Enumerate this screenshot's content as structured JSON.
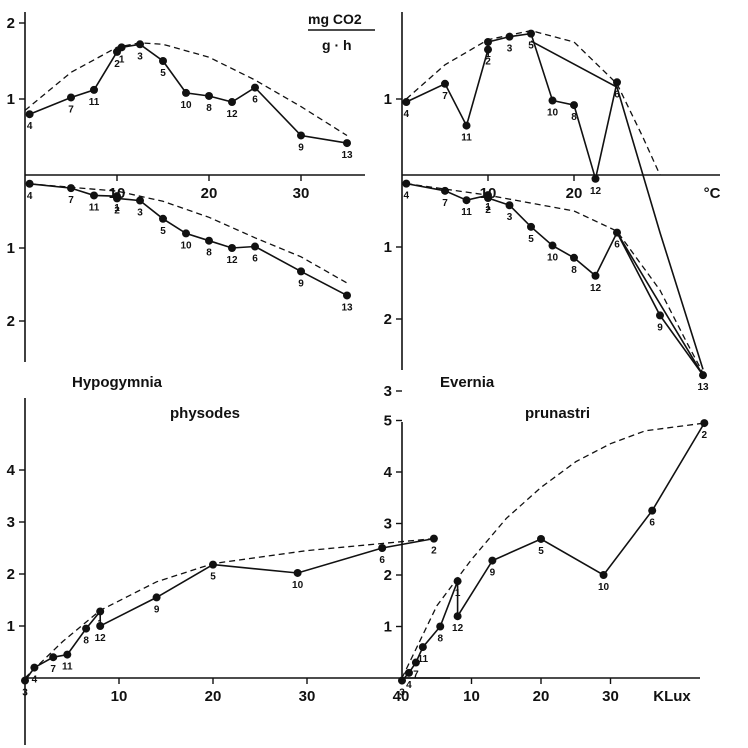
{
  "header": {
    "units_numerator": "mg CO2",
    "units_denominator": "g · h"
  },
  "species": [
    {
      "genus": "Hypogymnia",
      "epithet": "physodes"
    },
    {
      "genus": "Evernia",
      "epithet": "prunastri"
    }
  ],
  "chart_data": [
    {
      "id": "hyp_temp_uptake",
      "type": "line",
      "xticks": [
        10,
        20,
        30
      ],
      "yticks": [
        1,
        2
      ],
      "xlim": [
        0,
        36
      ],
      "ylim": [
        0,
        2
      ],
      "points": [
        {
          "label": "4",
          "x": 0.5,
          "y": 0.8
        },
        {
          "label": "7",
          "x": 5,
          "y": 1.02
        },
        {
          "label": "11",
          "x": 7.5,
          "y": 1.12
        },
        {
          "label": "2",
          "x": 10,
          "y": 1.62
        },
        {
          "label": "1",
          "x": 10.5,
          "y": 1.68
        },
        {
          "label": "3",
          "x": 12.5,
          "y": 1.72
        },
        {
          "label": "5",
          "x": 15,
          "y": 1.5
        },
        {
          "label": "10",
          "x": 17.5,
          "y": 1.08
        },
        {
          "label": "8",
          "x": 20,
          "y": 1.04
        },
        {
          "label": "12",
          "x": 22.5,
          "y": 0.96
        },
        {
          "label": "6",
          "x": 25,
          "y": 1.15
        },
        {
          "label": "9",
          "x": 30,
          "y": 0.52
        },
        {
          "label": "13",
          "x": 35,
          "y": 0.42
        }
      ],
      "envelope": [
        [
          0,
          0.85
        ],
        [
          5,
          1.35
        ],
        [
          10,
          1.68
        ],
        [
          12.5,
          1.74
        ],
        [
          15,
          1.72
        ],
        [
          20,
          1.55
        ],
        [
          25,
          1.25
        ],
        [
          30,
          0.9
        ],
        [
          35,
          0.52
        ]
      ]
    },
    {
      "id": "hyp_temp_resp",
      "type": "line",
      "xlim": [
        0,
        36
      ],
      "yticks": [
        1,
        2
      ],
      "ylim": [
        0,
        2.5
      ],
      "points": [
        {
          "label": "4",
          "x": 0.5,
          "y": 0.12
        },
        {
          "label": "7",
          "x": 5,
          "y": 0.18
        },
        {
          "label": "11",
          "x": 7.5,
          "y": 0.28
        },
        {
          "label": "1",
          "x": 10,
          "y": 0.29
        },
        {
          "label": "2",
          "x": 10,
          "y": 0.32
        },
        {
          "label": "3",
          "x": 12.5,
          "y": 0.35
        },
        {
          "label": "5",
          "x": 15,
          "y": 0.6
        },
        {
          "label": "10",
          "x": 17.5,
          "y": 0.8
        },
        {
          "label": "8",
          "x": 20,
          "y": 0.9
        },
        {
          "label": "12",
          "x": 22.5,
          "y": 1.0
        },
        {
          "label": "6",
          "x": 25,
          "y": 0.98
        },
        {
          "label": "9",
          "x": 30,
          "y": 1.32
        },
        {
          "label": "13",
          "x": 35,
          "y": 1.65
        }
      ],
      "envelope": [
        [
          0.5,
          0.12
        ],
        [
          10,
          0.22
        ],
        [
          15,
          0.36
        ],
        [
          20,
          0.58
        ],
        [
          25,
          0.86
        ],
        [
          30,
          1.12
        ],
        [
          35,
          1.48
        ]
      ]
    },
    {
      "id": "eve_temp_uptake",
      "type": "line",
      "xticks": [
        10,
        20
      ],
      "xlabel": "°C",
      "yticks": [
        1
      ],
      "xlim": [
        0,
        36
      ],
      "ylim": [
        0,
        2
      ],
      "points": [
        {
          "label": "4",
          "x": 0.5,
          "y": 0.96
        },
        {
          "label": "7",
          "x": 5,
          "y": 1.2
        },
        {
          "label": "11",
          "x": 7.5,
          "y": 0.65
        },
        {
          "label": "2",
          "x": 10,
          "y": 1.65
        },
        {
          "label": "1",
          "x": 10,
          "y": 1.75
        },
        {
          "label": "3",
          "x": 12.5,
          "y": 1.82
        },
        {
          "label": "5",
          "x": 15,
          "y": 1.86
        },
        {
          "label": "10",
          "x": 17.5,
          "y": 0.98
        },
        {
          "label": "8",
          "x": 20,
          "y": 0.92
        },
        {
          "label": "12",
          "x": 22.5,
          "y": -0.05
        },
        {
          "label": "6",
          "x": 25,
          "y": 1.22
        }
      ],
      "envelope": [
        [
          0.5,
          1.0
        ],
        [
          5,
          1.45
        ],
        [
          10,
          1.78
        ],
        [
          15,
          1.9
        ],
        [
          20,
          1.75
        ],
        [
          25,
          1.2
        ],
        [
          28,
          0.5
        ],
        [
          30,
          0.0
        ]
      ]
    },
    {
      "id": "eve_temp_resp",
      "type": "line",
      "xlim": [
        0,
        36
      ],
      "yticks": [
        1,
        2,
        3
      ],
      "ylim": [
        0,
        3
      ],
      "points": [
        {
          "label": "4",
          "x": 0.5,
          "y": 0.12
        },
        {
          "label": "7",
          "x": 5,
          "y": 0.22
        },
        {
          "label": "11",
          "x": 7.5,
          "y": 0.35
        },
        {
          "label": "1",
          "x": 10,
          "y": 0.28
        },
        {
          "label": "2",
          "x": 10,
          "y": 0.32
        },
        {
          "label": "3",
          "x": 12.5,
          "y": 0.42
        },
        {
          "label": "5",
          "x": 15,
          "y": 0.72
        },
        {
          "label": "10",
          "x": 17.5,
          "y": 0.98
        },
        {
          "label": "8",
          "x": 20,
          "y": 1.15
        },
        {
          "label": "12",
          "x": 22.5,
          "y": 1.4
        },
        {
          "label": "6",
          "x": 25,
          "y": 0.8
        },
        {
          "label": "9",
          "x": 30,
          "y": 1.95
        },
        {
          "label": "13",
          "x": 35,
          "y": 2.78
        }
      ],
      "extra_paths": [
        [
          [
            15,
            -1.86
          ],
          [
            25,
            -1.22
          ],
          [
            30,
            0.8
          ],
          [
            35,
            2.7
          ]
        ],
        [
          [
            25,
            0.8
          ],
          [
            35,
            2.78
          ]
        ]
      ],
      "envelope": [
        [
          0.5,
          0.12
        ],
        [
          10,
          0.28
        ],
        [
          20,
          0.5
        ],
        [
          25,
          0.78
        ],
        [
          30,
          1.6
        ],
        [
          33,
          2.3
        ],
        [
          35,
          2.75
        ]
      ]
    },
    {
      "id": "hyp_light",
      "type": "line",
      "xticks": [
        10,
        20,
        30,
        40
      ],
      "yticks": [
        1,
        2,
        3,
        4
      ],
      "xlim": [
        0,
        45
      ],
      "ylim": [
        -1.8,
        5
      ],
      "points": [
        {
          "label": "3",
          "x": 0,
          "y": -0.05
        },
        {
          "label": "4",
          "x": 1,
          "y": 0.2
        },
        {
          "label": "7",
          "x": 3,
          "y": 0.4
        },
        {
          "label": "11",
          "x": 4.5,
          "y": 0.45
        },
        {
          "label": "8",
          "x": 6.5,
          "y": 0.95
        },
        {
          "label": "1",
          "x": 8,
          "y": 1.28
        },
        {
          "label": "12",
          "x": 8,
          "y": 1.0
        },
        {
          "label": "9",
          "x": 14,
          "y": 1.55
        },
        {
          "label": "5",
          "x": 20,
          "y": 2.18
        },
        {
          "label": "10",
          "x": 29,
          "y": 2.02
        },
        {
          "label": "6",
          "x": 38,
          "y": 2.5
        },
        {
          "label": "2",
          "x": 43.5,
          "y": 2.68
        }
      ],
      "envelope": [
        [
          0,
          0
        ],
        [
          4,
          0.7
        ],
        [
          8,
          1.3
        ],
        [
          14,
          1.85
        ],
        [
          20,
          2.2
        ],
        [
          30,
          2.45
        ],
        [
          43.5,
          2.68
        ]
      ]
    },
    {
      "id": "eve_light",
      "type": "line",
      "xticks": [
        10,
        20,
        30
      ],
      "xlabel": "KLux",
      "yticks": [
        1,
        2,
        3,
        4,
        5
      ],
      "xlim": [
        0,
        45
      ],
      "ylim": [
        -1.8,
        5
      ],
      "points": [
        {
          "label": "3",
          "x": 0,
          "y": -0.05
        },
        {
          "label": "4",
          "x": 1,
          "y": 0.1
        },
        {
          "label": "7",
          "x": 2,
          "y": 0.3
        },
        {
          "label": "11",
          "x": 3,
          "y": 0.6
        },
        {
          "label": "8",
          "x": 5.5,
          "y": 1.0
        },
        {
          "label": "1",
          "x": 8,
          "y": 1.88
        },
        {
          "label": "12",
          "x": 8,
          "y": 1.2
        },
        {
          "label": "9",
          "x": 13,
          "y": 2.28
        },
        {
          "label": "5",
          "x": 20,
          "y": 2.7
        },
        {
          "label": "10",
          "x": 29,
          "y": 2.0
        },
        {
          "label": "6",
          "x": 36,
          "y": 3.25
        },
        {
          "label": "2",
          "x": 43.5,
          "y": 4.95
        }
      ],
      "envelope": [
        [
          0,
          0
        ],
        [
          5,
          1.4
        ],
        [
          10,
          2.3
        ],
        [
          15,
          3.1
        ],
        [
          20,
          3.7
        ],
        [
          25,
          4.2
        ],
        [
          30,
          4.55
        ],
        [
          35,
          4.8
        ],
        [
          43.5,
          4.95
        ]
      ]
    }
  ]
}
